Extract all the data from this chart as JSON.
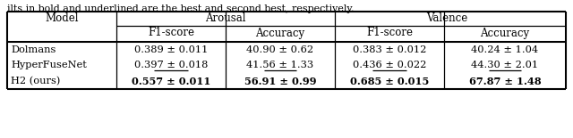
{
  "caption": "ilts in bold and underlined are the best and second best, respectively.",
  "rows": [
    {
      "model": "Dolmans",
      "arousal_f1": "0.389 ± 0.011",
      "arousal_acc": "40.90 ± 0.62",
      "valence_f1": "0.383 ± 0.012",
      "valence_acc": "40.24 ± 1.04",
      "bold": [],
      "underline": []
    },
    {
      "model": "HyperFuseNet",
      "arousal_f1": "0.397 ± 0.018",
      "arousal_acc": "41.56 ± 1.33",
      "valence_f1": "0.436 ± 0.022",
      "valence_acc": "44.30 ± 2.01",
      "bold": [],
      "underline": [
        "arousal_f1",
        "arousal_acc",
        "valence_f1",
        "valence_acc"
      ]
    },
    {
      "model": "H2 (ours)",
      "arousal_f1": "0.557 ± 0.011",
      "arousal_acc": "56.91 ± 0.99",
      "valence_f1": "0.685 ± 0.015",
      "valence_acc": "67.87 ± 1.48",
      "bold": [
        "arousal_f1",
        "arousal_acc",
        "valence_f1",
        "valence_acc",
        "arousal_acc_num",
        "valence_acc_num"
      ],
      "underline": []
    }
  ],
  "bg_color": "#ffffff",
  "text_color": "#000000",
  "font_size": 8.2,
  "header_font_size": 8.5,
  "fig_width": 6.4,
  "fig_height": 1.55,
  "dpi": 100
}
